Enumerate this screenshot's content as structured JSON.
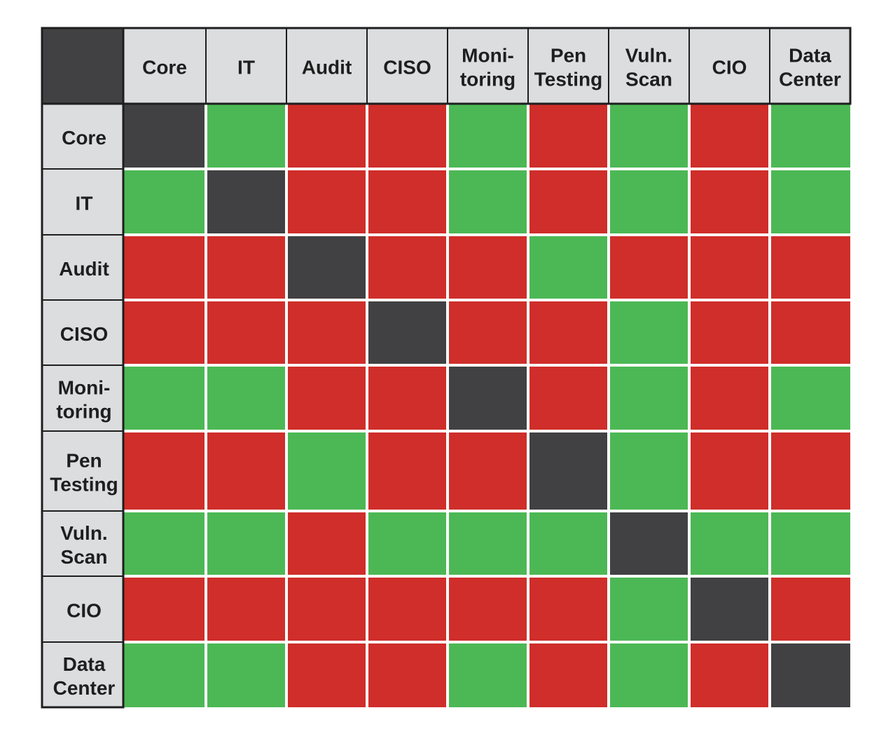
{
  "chart_data": {
    "type": "heatmap",
    "title": "",
    "columns": [
      [
        "Core"
      ],
      [
        "IT"
      ],
      [
        "Audit"
      ],
      [
        "CISO"
      ],
      [
        "Moni-",
        "toring"
      ],
      [
        "Pen",
        "Testing"
      ],
      [
        "Vuln.",
        "Scan"
      ],
      [
        "CIO"
      ],
      [
        "Data",
        "Center"
      ]
    ],
    "rows": [
      [
        "Core"
      ],
      [
        "IT"
      ],
      [
        "Audit"
      ],
      [
        "CISO"
      ],
      [
        "Moni-",
        "toring"
      ],
      [
        "Pen",
        "Testing"
      ],
      [
        "Vuln.",
        "Scan"
      ],
      [
        "CIO"
      ],
      [
        "Data",
        "Center"
      ]
    ],
    "values": [
      [
        "self",
        "green",
        "red",
        "red",
        "green",
        "red",
        "green",
        "red",
        "green"
      ],
      [
        "green",
        "self",
        "red",
        "red",
        "green",
        "red",
        "green",
        "red",
        "green"
      ],
      [
        "red",
        "red",
        "self",
        "red",
        "red",
        "green",
        "red",
        "red",
        "red"
      ],
      [
        "red",
        "red",
        "red",
        "self",
        "red",
        "red",
        "green",
        "red",
        "red"
      ],
      [
        "green",
        "green",
        "red",
        "red",
        "self",
        "red",
        "green",
        "red",
        "green"
      ],
      [
        "red",
        "red",
        "green",
        "red",
        "red",
        "self",
        "green",
        "red",
        "red"
      ],
      [
        "green",
        "green",
        "red",
        "green",
        "green",
        "green",
        "self",
        "green",
        "green"
      ],
      [
        "red",
        "red",
        "red",
        "red",
        "red",
        "red",
        "green",
        "self",
        "red"
      ],
      [
        "green",
        "green",
        "red",
        "red",
        "green",
        "red",
        "green",
        "red",
        "self"
      ]
    ],
    "colors": {
      "green": "#4cb855",
      "red": "#cf2e2a",
      "self": "#414042",
      "header_bg": "#dcdddf",
      "corner": "#414042",
      "border": "#1e1e1e",
      "text": "#1e1e1e"
    }
  }
}
